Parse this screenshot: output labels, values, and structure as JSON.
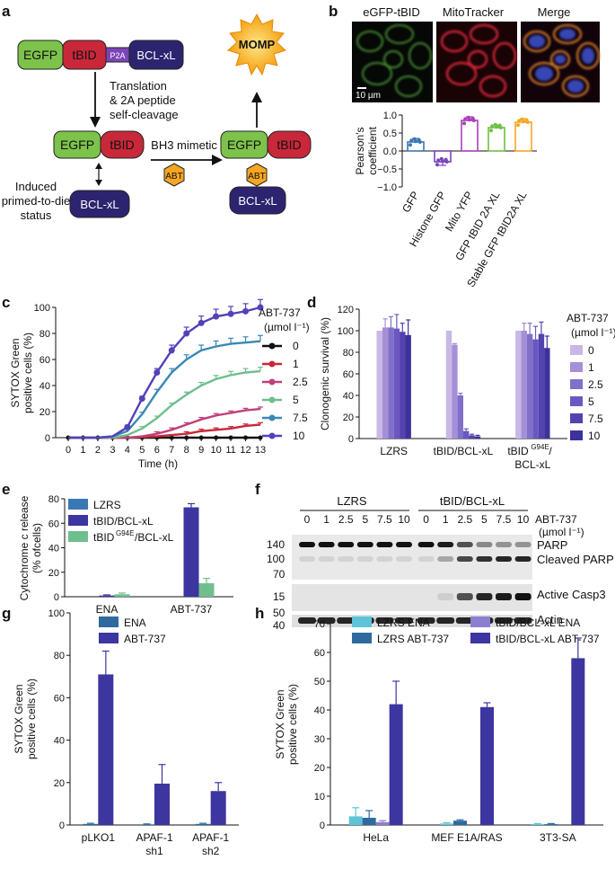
{
  "panel_labels": [
    "a",
    "b",
    "c",
    "d",
    "e",
    "f",
    "g",
    "h"
  ],
  "colors": {
    "green": "#7dc24a",
    "red": "#c8283a",
    "navy": "#2d2470",
    "purple": "#7b44b8",
    "orange": "#f5a623",
    "lzrs_blue": "#3a78b5",
    "teal_green": "#6fbf8e",
    "enat_blue": "#2e6a9e",
    "aba_navy": "#3d35a0",
    "cyan": "#5ec3d6",
    "lav": "#8b7fd0"
  },
  "panel_a": {
    "egfp": "EGFP",
    "tbid": "tBID",
    "p2a": "P2A",
    "bclxl": "BCL-xL",
    "translation_lines": [
      "Translation",
      "& 2A peptide",
      "self-cleavage"
    ],
    "bh3": "BH3 mimetic",
    "abt": "ABT",
    "momp": "MOMP",
    "primed_lines": [
      "Induced",
      "primed-to-die",
      "status"
    ]
  },
  "panel_b": {
    "titles": [
      "eGFP-tBID",
      "MitoTracker",
      "Merge"
    ],
    "scale_bar": "10 µm",
    "chart_data": {
      "type": "bar",
      "categories": [
        "GFP",
        "Histone GFP",
        "Mito YFP",
        "GFP tBID 2A XL",
        "Stable GFP tBID2A XL"
      ],
      "values": [
        0.25,
        -0.3,
        0.85,
        0.65,
        0.8
      ],
      "errors": [
        0.1,
        0.1,
        0.1,
        0.07,
        0.1
      ],
      "colors": [
        "#3a78b5",
        "#7b44b8",
        "#a640b8",
        "#6fbf45",
        "#f5a623"
      ],
      "ylabel_lines": [
        "Pearson's",
        "coefficient"
      ],
      "ylim": [
        -1.0,
        1.0
      ],
      "yticks": [
        -1.0,
        -0.5,
        0.0,
        0.5,
        1.0
      ],
      "ytick_labels": [
        "−1.0",
        "−0.5",
        "0.0",
        "0.5",
        "1.0"
      ]
    }
  },
  "panel_c": {
    "chart_data": {
      "type": "line",
      "x": [
        0,
        1,
        2,
        3,
        4,
        5,
        6,
        7,
        8,
        9,
        10,
        11,
        12,
        13
      ],
      "series": [
        {
          "name": "0",
          "color": "#111111",
          "values": [
            0,
            0,
            0,
            0,
            0,
            0,
            0,
            0,
            0,
            0,
            0,
            0,
            0,
            0
          ]
        },
        {
          "name": "1",
          "color": "#c8283a",
          "values": [
            0,
            0,
            0,
            0,
            0,
            0.5,
            1,
            2,
            3,
            5,
            6,
            7,
            9,
            10
          ]
        },
        {
          "name": "2.5",
          "color": "#c0407a",
          "values": [
            0,
            0,
            0,
            0,
            0,
            1,
            3,
            6,
            10,
            14,
            17,
            19,
            21,
            22
          ]
        },
        {
          "name": "5",
          "color": "#6fbf8e",
          "values": [
            0,
            0,
            0,
            0,
            2,
            7,
            15,
            25,
            33,
            40,
            45,
            48,
            50,
            51
          ]
        },
        {
          "name": "7.5",
          "color": "#3a88b5",
          "values": [
            0,
            0,
            0,
            1,
            5,
            18,
            35,
            50,
            60,
            67,
            70,
            72,
            73,
            74
          ]
        },
        {
          "name": "10",
          "color": "#5540b8",
          "values": [
            0,
            0,
            0,
            1,
            8,
            30,
            50,
            67,
            80,
            88,
            93,
            95,
            97,
            100
          ]
        }
      ],
      "xlabel": "Time (h)",
      "ylabel_lines": [
        "SYTOX Green",
        "positive cells (%)"
      ],
      "ylim": [
        0,
        100
      ],
      "yticks": [
        0,
        20,
        40,
        60,
        80,
        100
      ],
      "legend_title_lines": [
        "ABT-737",
        "(µmol l⁻¹)"
      ]
    }
  },
  "panel_d": {
    "chart_data": {
      "type": "bar",
      "categories": [
        "LZRS",
        "tBID/BCL-xL",
        "tBIDG94E/BCL-xL"
      ],
      "category_labels": [
        [
          "LZRS"
        ],
        [
          "tBID/BCL-xL"
        ],
        [
          "tBID",
          "G94E",
          "/",
          "BCL-xL"
        ]
      ],
      "series": [
        {
          "name": "0",
          "color": "#c8b8e6",
          "values": [
            100,
            100,
            100
          ]
        },
        {
          "name": "1",
          "color": "#a58fd6",
          "values": [
            103,
            87,
            100
          ]
        },
        {
          "name": "2.5",
          "color": "#8070c8",
          "values": [
            103,
            40,
            97
          ]
        },
        {
          "name": "5",
          "color": "#6a58c0",
          "values": [
            102,
            7,
            92
          ]
        },
        {
          "name": "7.5",
          "color": "#5243ae",
          "values": [
            99,
            3,
            97
          ]
        },
        {
          "name": "10",
          "color": "#3d319c",
          "values": [
            96,
            2,
            84
          ]
        }
      ],
      "errors": [
        [
          0,
          0,
          0
        ],
        [
          8,
          1,
          7
        ],
        [
          10,
          2,
          10
        ],
        [
          13,
          2,
          12
        ],
        [
          8,
          1,
          11
        ],
        [
          14,
          1,
          11
        ]
      ],
      "ylabel": "Clonogenic survival (%)",
      "ylim": [
        0,
        120
      ],
      "yticks": [
        0,
        20,
        40,
        60,
        80,
        100,
        120
      ],
      "legend_title_lines": [
        "ABT-737",
        "(µmol l⁻¹)"
      ]
    }
  },
  "panel_e": {
    "chart_data": {
      "type": "bar",
      "categories": [
        "ENA",
        "ABT-737"
      ],
      "series": [
        {
          "name": "LZRS",
          "color": "#3a78b5",
          "values": [
            0,
            0
          ]
        },
        {
          "name": "tBID/BCL-xL",
          "color": "#3d35a0",
          "values": [
            1,
            73
          ]
        },
        {
          "name": "tBIDG94E/BCL-xL",
          "color": "#6fbf8e",
          "values": [
            2,
            11
          ]
        }
      ],
      "errors": [
        [
          0,
          0
        ],
        [
          0.5,
          3
        ],
        [
          1,
          4
        ]
      ],
      "legend_labels": [
        [
          "LZRS"
        ],
        [
          "tBID/BCL-xL"
        ],
        [
          "tBID",
          "G94E",
          "/BCL-xL"
        ]
      ],
      "ylabel_lines": [
        "Cytochrome c release",
        "(% ofcells)"
      ],
      "ylim": [
        0,
        80
      ],
      "yticks": [
        0,
        20,
        40,
        60,
        80
      ]
    }
  },
  "panel_f": {
    "group_labels": [
      "LZRS",
      "tBID/BCL-xL"
    ],
    "lanes": [
      "0",
      "1",
      "2.5",
      "5",
      "7.5",
      "10",
      "0",
      "1",
      "2.5",
      "5",
      "7.5",
      "10"
    ],
    "dose_label_lines": [
      "ABT-737",
      "(µmol l⁻¹)"
    ],
    "mw_markers": [
      "140",
      "100",
      "70",
      "15",
      "50",
      "40"
    ],
    "band_labels": [
      "PARP",
      "Cleaved PARP",
      "Active Casp3",
      "Actin"
    ]
  },
  "panel_g": {
    "chart_data": {
      "type": "bar",
      "categories": [
        "pLKO1",
        "APAF-1 sh1",
        "APAF-1 sh2"
      ],
      "category_labels": [
        [
          "pLKO1"
        ],
        [
          "APAF-1",
          "sh1"
        ],
        [
          "APAF-1",
          "sh2"
        ]
      ],
      "series": [
        {
          "name": "ENA",
          "color": "#2e6a9e",
          "values": [
            0.5,
            0.3,
            0.5
          ]
        },
        {
          "name": "ABT-737",
          "color": "#3d35a0",
          "values": [
            71,
            19.5,
            16
          ]
        }
      ],
      "errors": [
        [
          0.3,
          0.2,
          0.3
        ],
        [
          11,
          9,
          4
        ]
      ],
      "ylabel_lines": [
        "SYTOX Green",
        "positive cells (%)"
      ],
      "ylim": [
        0,
        100
      ],
      "yticks": [
        0,
        20,
        40,
        60,
        80,
        100
      ]
    }
  },
  "panel_h": {
    "chart_data": {
      "type": "bar",
      "categories": [
        "HeLa",
        "MEF E1A/RAS",
        "3T3-SA"
      ],
      "series": [
        {
          "name": "LZRS ENA",
          "color": "#5ec3d6",
          "values": [
            3,
            0.5,
            0.3
          ]
        },
        {
          "name": "LZRS ABT-737",
          "color": "#2e6a9e",
          "values": [
            2.5,
            1.5,
            0.3
          ]
        },
        {
          "name": "tBID/BCL-xL ENA",
          "color": "#8b7fd0",
          "values": [
            1,
            0,
            0
          ]
        },
        {
          "name": "tBID/BCL-xL ABT-737",
          "color": "#3d35a0",
          "values": [
            42,
            41,
            58
          ]
        }
      ],
      "errors": [
        [
          3,
          0.3,
          0.2
        ],
        [
          2.5,
          0.3,
          0.2
        ],
        [
          0.5,
          0,
          0
        ],
        [
          8,
          1.5,
          7
        ]
      ],
      "ylabel_lines": [
        "SYTOX Green",
        "positive cells (%)"
      ],
      "ylim": [
        0,
        70
      ],
      "yticks": [
        0,
        10,
        20,
        30,
        40,
        50,
        60,
        70
      ]
    }
  }
}
